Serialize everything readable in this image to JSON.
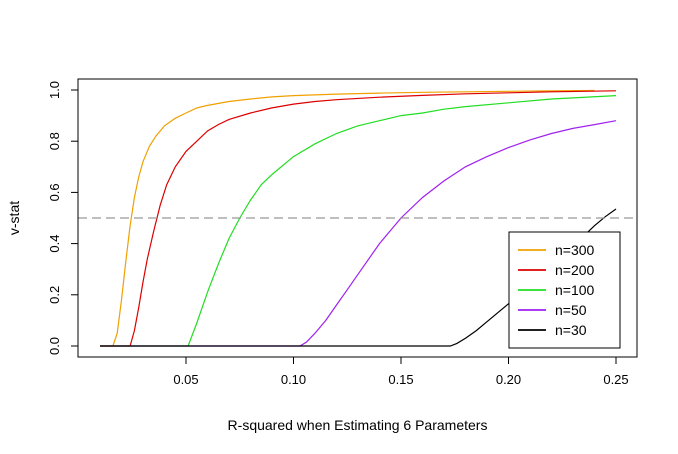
{
  "chart_data": {
    "type": "line",
    "title": "",
    "xlabel": "R-squared when Estimating 6 Parameters",
    "ylabel": "v-stat",
    "xlim": [
      0.01,
      0.25
    ],
    "ylim": [
      0,
      1
    ],
    "x_ticks": [
      0.05,
      0.1,
      0.15,
      0.2,
      0.25
    ],
    "x_tick_labels": [
      "0.05",
      "0.10",
      "0.15",
      "0.20",
      "0.25"
    ],
    "y_ticks": [
      0,
      0.2,
      0.4,
      0.6,
      0.8,
      1.0
    ],
    "y_tick_labels": [
      "0.0",
      "0.2",
      "0.4",
      "0.6",
      "0.8",
      "1.0"
    ],
    "grid": false,
    "reference_line": {
      "y": 0.5,
      "style": "dashed",
      "color": "#999999"
    },
    "legend": {
      "position": "bottom-right"
    },
    "series": [
      {
        "name": "n=300",
        "color": "#F0A000",
        "x": [
          0.01,
          0.016,
          0.018,
          0.02,
          0.022,
          0.024,
          0.026,
          0.028,
          0.03,
          0.033,
          0.036,
          0.04,
          0.045,
          0.05,
          0.055,
          0.06,
          0.07,
          0.08,
          0.09,
          0.1,
          0.12,
          0.14,
          0.16,
          0.18,
          0.2,
          0.22,
          0.24
        ],
        "y": [
          0.0,
          0.0,
          0.05,
          0.18,
          0.33,
          0.47,
          0.58,
          0.66,
          0.72,
          0.78,
          0.82,
          0.86,
          0.89,
          0.91,
          0.93,
          0.94,
          0.955,
          0.965,
          0.973,
          0.978,
          0.984,
          0.988,
          0.991,
          0.993,
          0.995,
          0.997,
          0.998
        ]
      },
      {
        "name": "n=200",
        "color": "#DD0000",
        "x": [
          0.01,
          0.024,
          0.026,
          0.028,
          0.03,
          0.032,
          0.035,
          0.038,
          0.041,
          0.045,
          0.05,
          0.055,
          0.06,
          0.065,
          0.07,
          0.08,
          0.09,
          0.1,
          0.11,
          0.12,
          0.14,
          0.16,
          0.18,
          0.2,
          0.22,
          0.25
        ],
        "y": [
          0.0,
          0.0,
          0.06,
          0.15,
          0.25,
          0.34,
          0.45,
          0.55,
          0.63,
          0.7,
          0.76,
          0.8,
          0.84,
          0.865,
          0.885,
          0.91,
          0.93,
          0.945,
          0.955,
          0.962,
          0.972,
          0.979,
          0.985,
          0.989,
          0.993,
          0.997
        ]
      },
      {
        "name": "n=100",
        "color": "#22DD22",
        "x": [
          0.01,
          0.051,
          0.055,
          0.06,
          0.065,
          0.07,
          0.075,
          0.08,
          0.085,
          0.09,
          0.1,
          0.11,
          0.12,
          0.13,
          0.14,
          0.15,
          0.16,
          0.17,
          0.18,
          0.2,
          0.22,
          0.25
        ],
        "y": [
          0.0,
          0.0,
          0.09,
          0.21,
          0.32,
          0.42,
          0.5,
          0.57,
          0.63,
          0.67,
          0.74,
          0.79,
          0.83,
          0.86,
          0.88,
          0.9,
          0.91,
          0.925,
          0.935,
          0.95,
          0.965,
          0.978
        ]
      },
      {
        "name": "n=50",
        "color": "#A020F0",
        "x": [
          0.01,
          0.103,
          0.106,
          0.11,
          0.115,
          0.12,
          0.125,
          0.13,
          0.14,
          0.15,
          0.16,
          0.17,
          0.18,
          0.19,
          0.2,
          0.21,
          0.22,
          0.23,
          0.24,
          0.25
        ],
        "y": [
          0.0,
          0.0,
          0.015,
          0.05,
          0.1,
          0.16,
          0.22,
          0.28,
          0.4,
          0.5,
          0.58,
          0.645,
          0.7,
          0.74,
          0.775,
          0.805,
          0.83,
          0.85,
          0.865,
          0.88
        ]
      },
      {
        "name": "n=30",
        "color": "#000000",
        "x": [
          0.01,
          0.173,
          0.176,
          0.18,
          0.185,
          0.19,
          0.195,
          0.2,
          0.205,
          0.21,
          0.215,
          0.22,
          0.225,
          0.23,
          0.235,
          0.24,
          0.245,
          0.25
        ],
        "y": [
          0.0,
          0.0,
          0.01,
          0.03,
          0.06,
          0.095,
          0.13,
          0.165,
          0.2,
          0.24,
          0.28,
          0.32,
          0.36,
          0.4,
          0.43,
          0.47,
          0.505,
          0.535
        ]
      }
    ]
  }
}
